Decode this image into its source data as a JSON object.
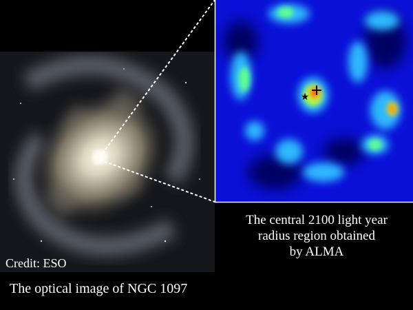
{
  "inset_caption": {
    "lines": [
      "The central 2100 light year",
      "radius region obtained",
      "by ALMA"
    ]
  },
  "credit": "Credit: ESO",
  "main_caption": "The optical image of NGC 1097"
}
